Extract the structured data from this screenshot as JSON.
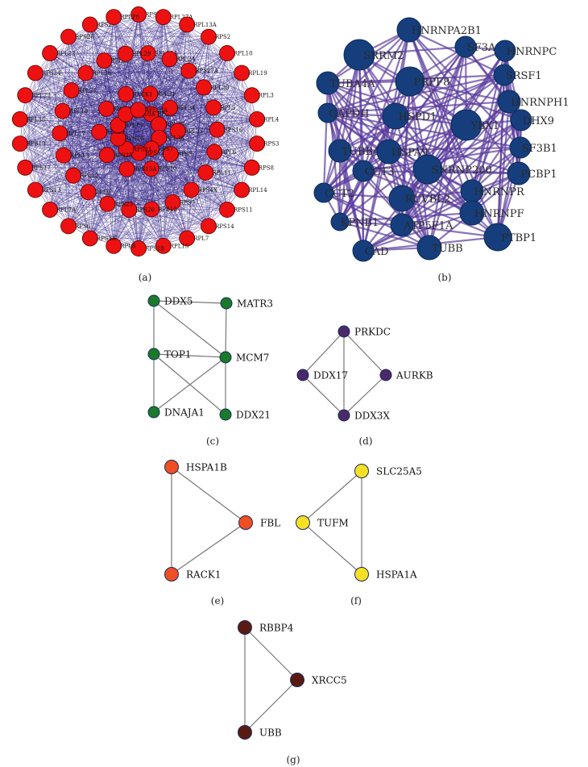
{
  "panels": [
    {
      "id": "a",
      "label": "(a)",
      "node_color": "#ee1111",
      "edge_color": "#3a2a8a",
      "nodes": [
        "RPSA",
        "RPL27A",
        "RPL13A",
        "RPS2",
        "RPL10",
        "RPL19",
        "RPL3",
        "RPL4",
        "RPS3",
        "RPS8",
        "RPL14",
        "RPS11",
        "RPS14",
        "RPL7",
        "RPL15",
        "RPS18",
        "RPL8",
        "RPS3A",
        "RPS6",
        "RPL7A",
        "RPS13",
        "RPS17",
        "RPS19",
        "RPL35",
        "RPL23",
        "RPS24",
        "RPL22",
        "RPS26",
        "RPS27",
        "RPLP0",
        "RPL18A",
        "RPL24",
        "RPS27A",
        "RPL30",
        "RPL5",
        "RPS16",
        "RPL6",
        "RPL11",
        "RPS4X",
        "RPS9",
        "RPS15",
        "RPS20",
        "RPS23",
        "RPL9",
        "RPL12",
        "RPL13",
        "RPL17",
        "RPL18",
        "RPL21",
        "RPL26",
        "RPL28",
        "RPL29",
        "RPL31",
        "RPL32",
        "RPL34",
        "RPL36",
        "RPL37",
        "RPL38",
        "RPS5",
        "RPS7",
        "RPS10",
        "RPS12",
        "RPS15A",
        "RPS21",
        "RPS25",
        "RPS28",
        "RPS29",
        "RPLP1",
        "RPLP2",
        "RPL10A",
        "RACK1",
        "RPL36A"
      ]
    },
    {
      "id": "b",
      "label": "(b)",
      "node_color": "#163e7c",
      "edge_color": "#5a3a9c",
      "nodes": [
        "HNRNPA2B1",
        "SRRM2",
        "SF3A1",
        "HNRNPC",
        "SRSF1",
        "TUBA4A",
        "PRPF8",
        "HNRNPH1",
        "GAPDH",
        "HSPD1",
        "YBX1",
        "DHX9",
        "SF3B1",
        "TUBB4B",
        "HSPA9",
        "SNRNP200",
        "PCBP1",
        "CCT3",
        "CCT2",
        "RUVBL2",
        "HNRNPR",
        "HNRNPF",
        "KPNB1",
        "ATP5F1A",
        "PTBP1",
        "CAD",
        "TUBB"
      ]
    },
    {
      "id": "c",
      "label": "(c)",
      "node_color": "#1a7a2a",
      "nodes": [
        "DDX5",
        "MATR3",
        "TOP1",
        "MCM7",
        "DNAJA1",
        "DDX21"
      ]
    },
    {
      "id": "d",
      "label": "(d)",
      "node_color": "#4a2a6a",
      "nodes": [
        "PRKDC",
        "DDX17",
        "AURKB",
        "DDX3X"
      ]
    },
    {
      "id": "e",
      "label": "(e)",
      "node_color": "#f04e23",
      "nodes": [
        "HSPA1B",
        "FBL",
        "RACK1"
      ]
    },
    {
      "id": "f",
      "label": "(f)",
      "node_color": "#f5e023",
      "nodes": [
        "SLC25A5",
        "TUFM",
        "HSPA1A"
      ]
    },
    {
      "id": "g",
      "label": "(g)",
      "node_color": "#5a1a12",
      "nodes": [
        "RBBP4",
        "XRCC5",
        "UBB"
      ]
    }
  ]
}
